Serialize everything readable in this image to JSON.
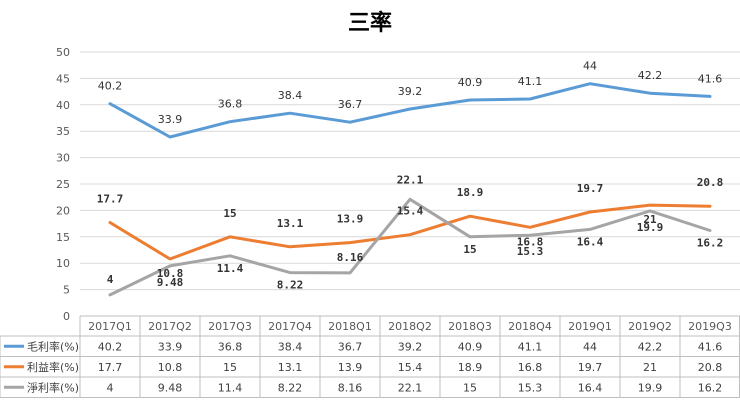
{
  "chart_data": {
    "type": "line",
    "title": "三率",
    "categories": [
      "2017Q1",
      "2017Q2",
      "2017Q3",
      "2017Q4",
      "2018Q1",
      "2018Q2",
      "2018Q3",
      "2018Q4",
      "2019Q1",
      "2019Q2",
      "2019Q3"
    ],
    "y_ticks": [
      "0",
      "5",
      "10",
      "15",
      "20",
      "25",
      "30",
      "35",
      "40",
      "45",
      "50"
    ],
    "ylim": [
      0,
      50
    ],
    "grid": true,
    "legend": "data-table",
    "series": [
      {
        "name": "毛利率(%)",
        "color": "#5b9bd5",
        "values": [
          40.2,
          33.9,
          36.8,
          38.4,
          36.7,
          39.2,
          40.9,
          41.1,
          44,
          42.2,
          41.6
        ],
        "labels": [
          "40.2",
          "33.9",
          "36.8",
          "38.4",
          "36.7",
          "39.2",
          "40.9",
          "41.1",
          "44",
          "42.2",
          "41.6"
        ]
      },
      {
        "name": "利益率(%)",
        "color": "#ed7d31",
        "values": [
          17.7,
          10.8,
          15,
          13.1,
          13.9,
          15.4,
          18.9,
          16.8,
          19.7,
          21,
          20.8
        ],
        "labels": [
          "17.7",
          "10.8",
          "15",
          "13.1",
          "13.9",
          "15.4",
          "18.9",
          "16.8",
          "19.7",
          "21",
          "20.8"
        ]
      },
      {
        "name": "淨利率(%)",
        "color": "#a5a5a5",
        "values": [
          4,
          9.48,
          11.4,
          8.22,
          8.16,
          22.1,
          15,
          15.3,
          16.4,
          19.9,
          16.2
        ],
        "labels": [
          "4",
          "9.48",
          "11.4",
          "8.22",
          "8.16",
          "22.1",
          "15",
          "15.3",
          "16.4",
          "19.9",
          "16.2"
        ]
      }
    ]
  }
}
